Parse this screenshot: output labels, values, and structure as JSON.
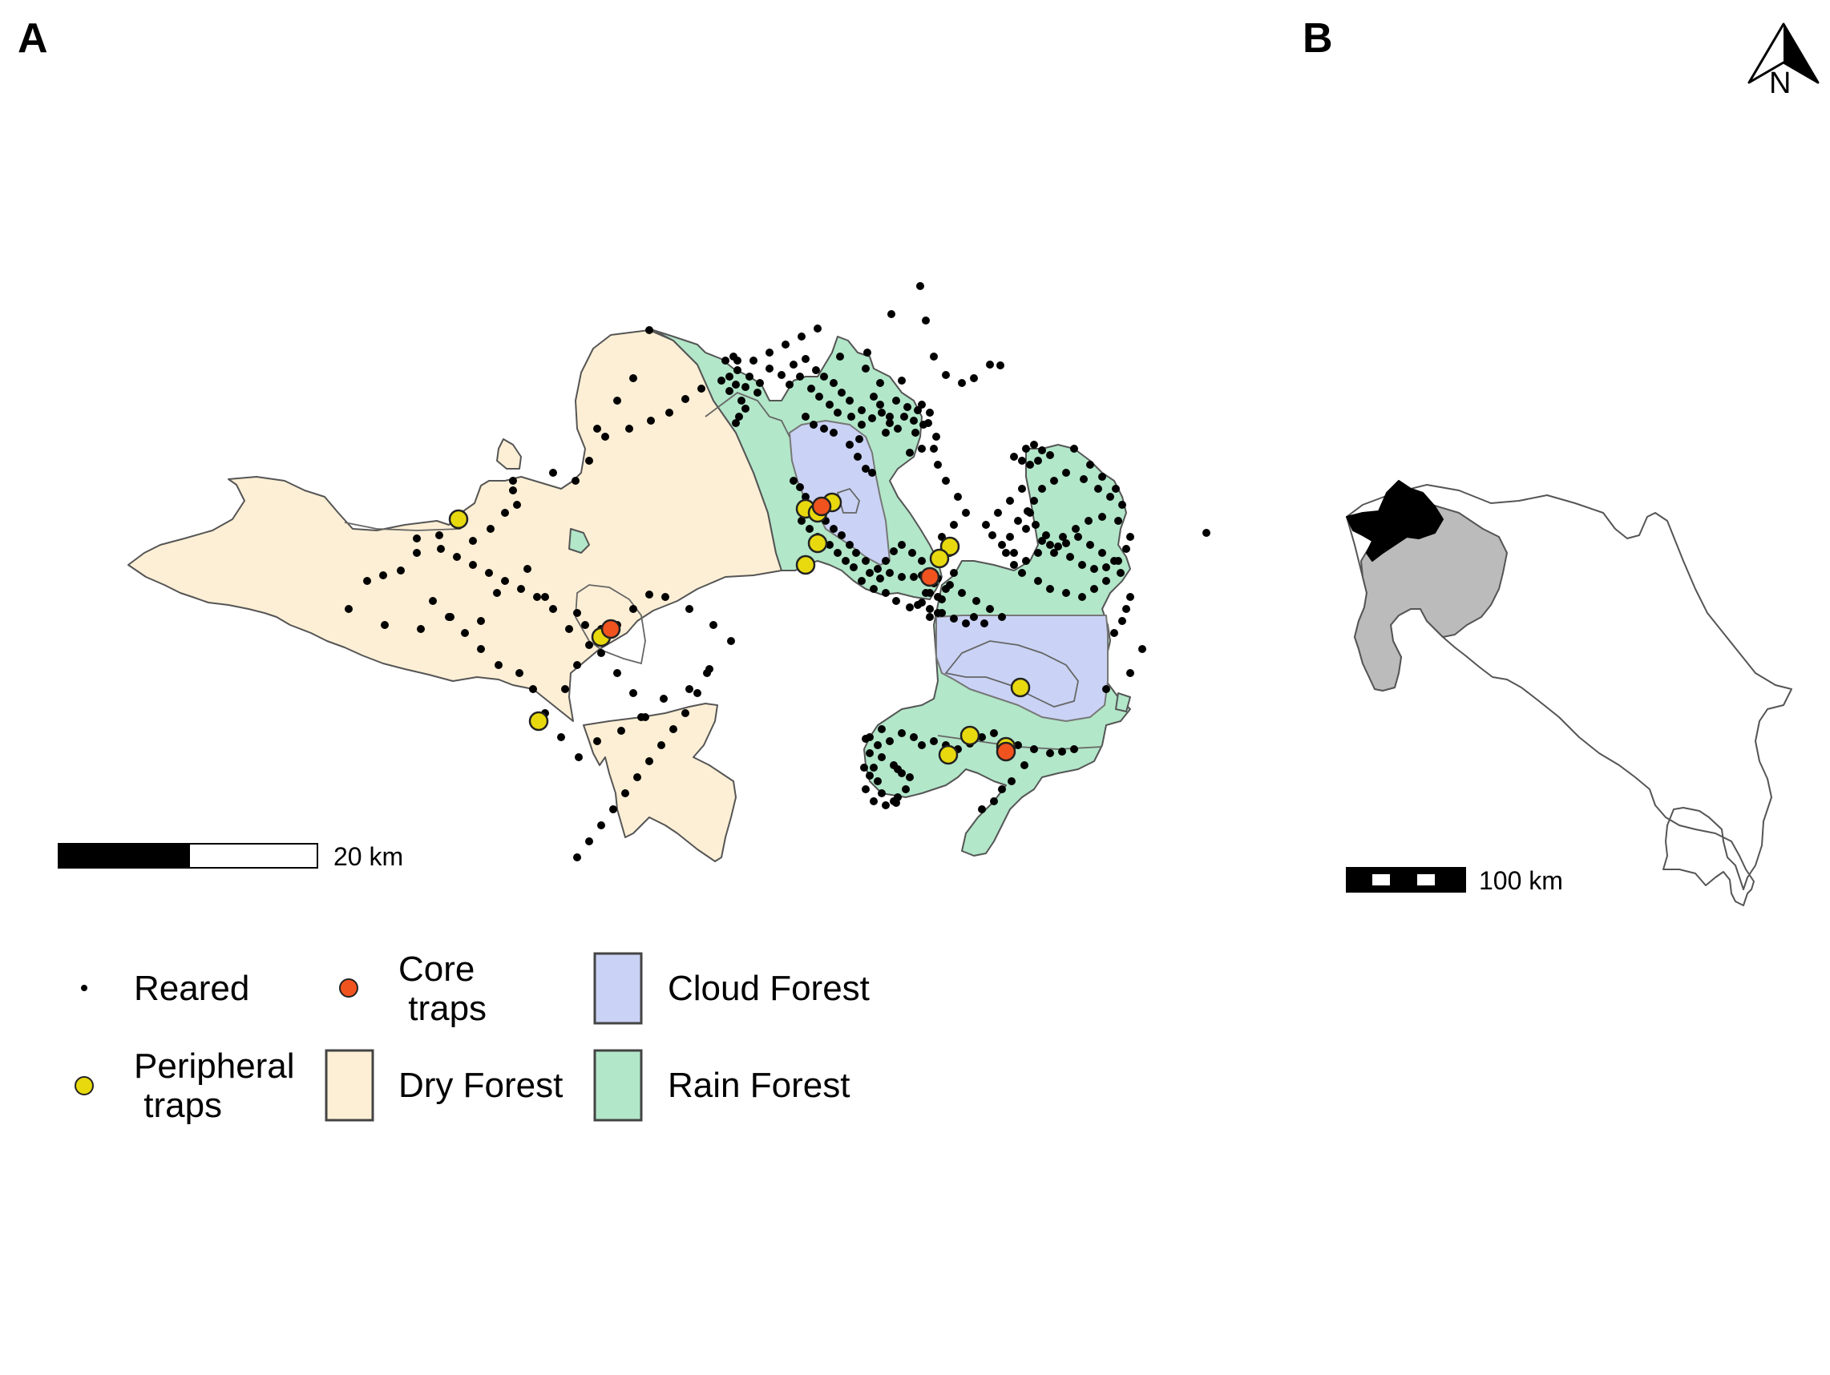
{
  "panels": {
    "a": "A",
    "b": "B"
  },
  "north_arrow": {
    "letter": "N"
  },
  "scale_bars": {
    "main": "20 km",
    "inset": "100 km"
  },
  "legend": {
    "reared": "Reared",
    "core_traps": "Core\n traps",
    "cloud_forest": "Cloud Forest",
    "peripheral_traps": "Peripheral\n traps",
    "dry_forest": "Dry Forest",
    "rain_forest": "Rain Forest"
  },
  "colors": {
    "dry_forest": "#fdefd5",
    "rain_forest": "#b2e7c9",
    "cloud_forest": "#cad3f5",
    "core_trap": "#f1531f",
    "peripheral_trap": "#e8d90e",
    "reared": "#000000",
    "region": "#bbbbbb",
    "study_area": "#000000"
  }
}
